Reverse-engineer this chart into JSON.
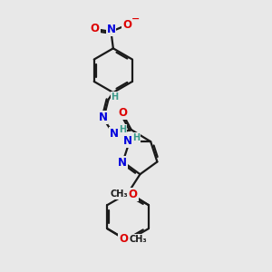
{
  "bg_color": "#e8e8e8",
  "bond_color": "#1a1a1a",
  "bond_width": 1.6,
  "atom_colors": {
    "C": "#1a1a1a",
    "N": "#0000dd",
    "O": "#dd0000",
    "H": "#3a9a8a"
  },
  "font_size_atom": 8.5,
  "font_size_small": 7.0
}
